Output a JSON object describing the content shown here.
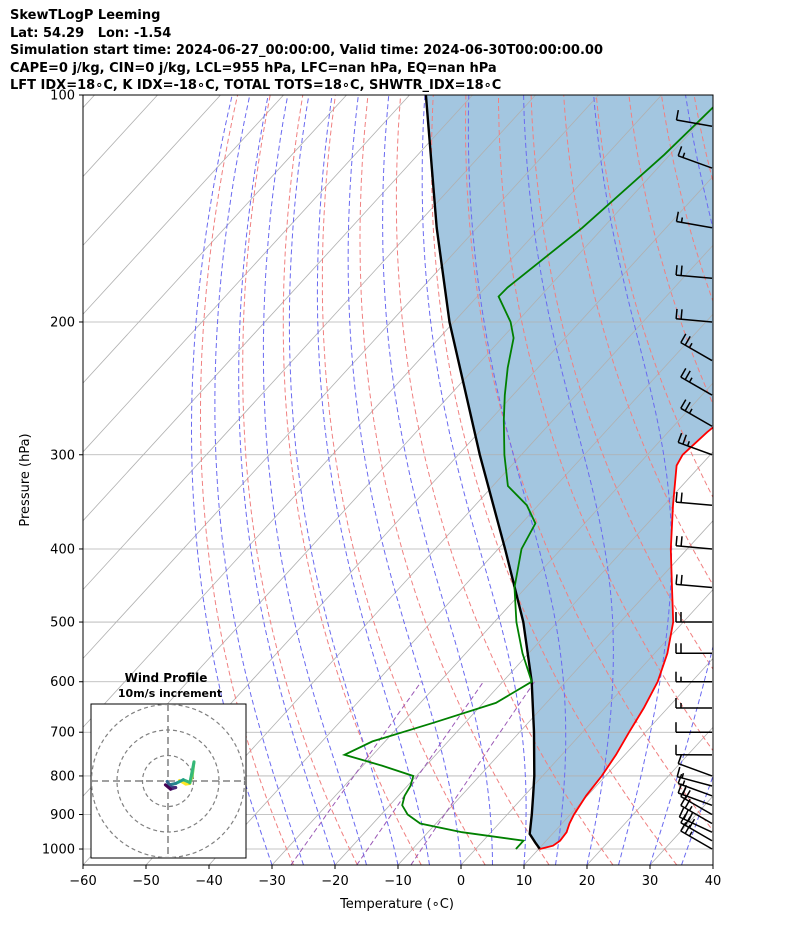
{
  "header": {
    "lines": [
      "SkewTLogP Leeming",
      "Lat: 54.29   Lon: -1.54",
      "Simulation start time: 2024-06-27_00:00:00, Valid time: 2024-06-30T00:00:00.00",
      "CAPE=0 j/kg, CIN=0 j/kg, LCL=955 hPa, LFC=nan hPa, EQ=nan hPa",
      "LFT IDX=18∘C, K IDX=-18∘C, TOTAL TOTS=18∘C, SHWTR_IDX=18∘C"
    ]
  },
  "chart_data": {
    "type": "skewt-logp",
    "xlabel": "Temperature (∘C)",
    "ylabel": "Pressure (hPa)",
    "xlim": [
      -60,
      40
    ],
    "ylim": [
      1050,
      100
    ],
    "x_ticks": [
      "−60",
      "−50",
      "−40",
      "−30",
      "−20",
      "−10",
      "0",
      "10",
      "20",
      "30",
      "40"
    ],
    "y_ticks": [
      "100",
      "200",
      "300",
      "400",
      "500",
      "600",
      "700",
      "800",
      "900",
      "1000"
    ],
    "y_scale": "log",
    "grid": true,
    "colors": {
      "temperature": "#ff0000",
      "dewpoint": "#008000",
      "parcel": "#000000",
      "cape_shading": "#a3c6e0",
      "dry_adiabats": "#f08080",
      "moist_adiabats": "#6a6af0",
      "mixing_ratio": "#9b59b6",
      "isotherms": "#b0b0b0"
    },
    "temperature_profile": [
      {
        "p": 1000,
        "t": 10.2
      },
      {
        "p": 990,
        "t": 11.8
      },
      {
        "p": 975,
        "t": 12.2
      },
      {
        "p": 950,
        "t": 12.0
      },
      {
        "p": 925,
        "t": 11.2
      },
      {
        "p": 900,
        "t": 10.6
      },
      {
        "p": 850,
        "t": 9.8
      },
      {
        "p": 800,
        "t": 9.4
      },
      {
        "p": 750,
        "t": 8.6
      },
      {
        "p": 700,
        "t": 7.4
      },
      {
        "p": 650,
        "t": 6.2
      },
      {
        "p": 600,
        "t": 4.6
      },
      {
        "p": 550,
        "t": 2.0
      },
      {
        "p": 500,
        "t": -1.6
      },
      {
        "p": 450,
        "t": -6.8
      },
      {
        "p": 400,
        "t": -12.6
      },
      {
        "p": 350,
        "t": -18.6
      },
      {
        "p": 310,
        "t": -23.8
      },
      {
        "p": 300,
        "t": -24.4
      },
      {
        "p": 280,
        "t": -23.8
      },
      {
        "p": 260,
        "t": -22.6
      },
      {
        "p": 240,
        "t": -20.0
      },
      {
        "p": 220,
        "t": -15.8
      },
      {
        "p": 200,
        "t": -10.4
      },
      {
        "p": 180,
        "t": -5.6
      },
      {
        "p": 160,
        "t": -1.8
      },
      {
        "p": 140,
        "t": 1.8
      },
      {
        "p": 120,
        "t": 5.0
      },
      {
        "p": 110,
        "t": 6.6
      },
      {
        "p": 100,
        "t": 8.2
      }
    ],
    "dewpoint_profile": [
      {
        "p": 1000,
        "t": 6.4
      },
      {
        "p": 975,
        "t": 6.4
      },
      {
        "p": 950,
        "t": -4.6
      },
      {
        "p": 925,
        "t": -12.5
      },
      {
        "p": 900,
        "t": -15.8
      },
      {
        "p": 875,
        "t": -18.0
      },
      {
        "p": 850,
        "t": -19.0
      },
      {
        "p": 825,
        "t": -19.5
      },
      {
        "p": 800,
        "t": -20.5
      },
      {
        "p": 775,
        "t": -27.0
      },
      {
        "p": 750,
        "t": -34.5
      },
      {
        "p": 720,
        "t": -32.0
      },
      {
        "p": 680,
        "t": -25.0
      },
      {
        "p": 640,
        "t": -18.0
      },
      {
        "p": 600,
        "t": -15.4
      },
      {
        "p": 550,
        "t": -21.0
      },
      {
        "p": 500,
        "t": -26.5
      },
      {
        "p": 450,
        "t": -31.8
      },
      {
        "p": 400,
        "t": -36.3
      },
      {
        "p": 370,
        "t": -37.8
      },
      {
        "p": 350,
        "t": -41.8
      },
      {
        "p": 330,
        "t": -47.6
      },
      {
        "p": 300,
        "t": -52.7
      },
      {
        "p": 270,
        "t": -57.8
      },
      {
        "p": 250,
        "t": -61.3
      },
      {
        "p": 230,
        "t": -64.8
      },
      {
        "p": 210,
        "t": -68.2
      },
      {
        "p": 200,
        "t": -71.0
      },
      {
        "p": 185,
        "t": -76.6
      },
      {
        "p": 180,
        "t": -76.5
      },
      {
        "p": 150,
        "t": -73.3
      },
      {
        "p": 120,
        "t": -70.9
      },
      {
        "p": 100,
        "t": -69.8
      }
    ],
    "parcel_profile": [
      {
        "p": 1000,
        "t": 10.2
      },
      {
        "p": 980,
        "t": 8.5
      },
      {
        "p": 955,
        "t": 6.4
      },
      {
        "p": 900,
        "t": 3.9
      },
      {
        "p": 850,
        "t": 1.4
      },
      {
        "p": 800,
        "t": -1.3
      },
      {
        "p": 700,
        "t": -7.7
      },
      {
        "p": 600,
        "t": -15.4
      },
      {
        "p": 500,
        "t": -25.4
      },
      {
        "p": 400,
        "t": -38.9
      },
      {
        "p": 300,
        "t": -56.6
      },
      {
        "p": 200,
        "t": -80.7
      },
      {
        "p": 150,
        "t": -96.4
      },
      {
        "p": 100,
        "t": -117.4
      }
    ],
    "wind_barbs": [
      {
        "p": 1000,
        "speed_kt": 25,
        "dir_deg": 300
      },
      {
        "p": 975,
        "speed_kt": 30,
        "dir_deg": 300
      },
      {
        "p": 950,
        "speed_kt": 30,
        "dir_deg": 295
      },
      {
        "p": 925,
        "speed_kt": 25,
        "dir_deg": 300
      },
      {
        "p": 900,
        "speed_kt": 20,
        "dir_deg": 300
      },
      {
        "p": 875,
        "speed_kt": 20,
        "dir_deg": 290
      },
      {
        "p": 850,
        "speed_kt": 15,
        "dir_deg": 290
      },
      {
        "p": 825,
        "speed_kt": 15,
        "dir_deg": 285
      },
      {
        "p": 800,
        "speed_kt": 10,
        "dir_deg": 290
      },
      {
        "p": 750,
        "speed_kt": 10,
        "dir_deg": 270
      },
      {
        "p": 700,
        "speed_kt": 10,
        "dir_deg": 270
      },
      {
        "p": 650,
        "speed_kt": 15,
        "dir_deg": 270
      },
      {
        "p": 600,
        "speed_kt": 15,
        "dir_deg": 270
      },
      {
        "p": 550,
        "speed_kt": 20,
        "dir_deg": 270
      },
      {
        "p": 500,
        "speed_kt": 20,
        "dir_deg": 270
      },
      {
        "p": 450,
        "speed_kt": 20,
        "dir_deg": 275
      },
      {
        "p": 400,
        "speed_kt": 20,
        "dir_deg": 275
      },
      {
        "p": 350,
        "speed_kt": 20,
        "dir_deg": 275
      },
      {
        "p": 300,
        "speed_kt": 25,
        "dir_deg": 290
      },
      {
        "p": 275,
        "speed_kt": 25,
        "dir_deg": 300
      },
      {
        "p": 250,
        "speed_kt": 25,
        "dir_deg": 300
      },
      {
        "p": 225,
        "speed_kt": 25,
        "dir_deg": 300
      },
      {
        "p": 200,
        "speed_kt": 20,
        "dir_deg": 275
      },
      {
        "p": 175,
        "speed_kt": 20,
        "dir_deg": 275
      },
      {
        "p": 150,
        "speed_kt": 15,
        "dir_deg": 280
      },
      {
        "p": 125,
        "speed_kt": 15,
        "dir_deg": 290
      },
      {
        "p": 110,
        "speed_kt": 10,
        "dir_deg": 280
      }
    ],
    "inset": {
      "title": "Wind Profile",
      "subtitle": "10m/s increment",
      "rings": 3,
      "hodograph": [
        {
          "u": 4.5,
          "v": 0.2
        },
        {
          "u": 7.0,
          "v": -1.2
        },
        {
          "u": 8.5,
          "v": -1.0
        },
        {
          "u": 9.5,
          "v": 2.0
        },
        {
          "u": 10.2,
          "v": 7.5
        },
        {
          "u": 8.6,
          "v": -0.6
        },
        {
          "u": 6.0,
          "v": 0.5
        },
        {
          "u": 3.0,
          "v": -1.0
        },
        {
          "u": 0.5,
          "v": -1.5
        },
        {
          "u": -0.3,
          "v": -0.2
        },
        {
          "u": 1.2,
          "v": -2.4
        },
        {
          "u": 3.0,
          "v": -2.6
        },
        {
          "u": 1.0,
          "v": -3.2
        },
        {
          "u": -1.0,
          "v": -1.5
        }
      ]
    }
  }
}
